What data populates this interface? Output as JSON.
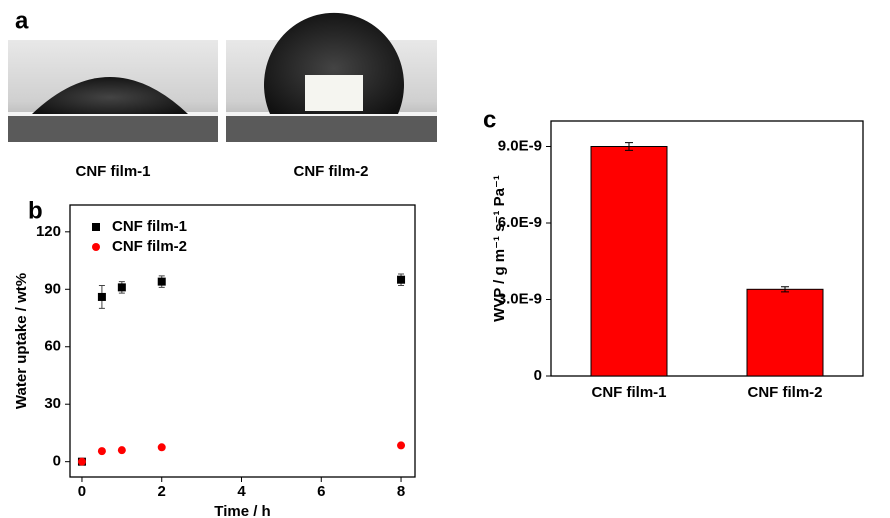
{
  "photos": {
    "label": "a",
    "captions": [
      "CNF film-1",
      "CNF film-2"
    ]
  },
  "chart_data": [
    {
      "type": "scatter",
      "label": "b",
      "xlabel": "Time / h",
      "ylabel": "Water uptake / wt%",
      "xlim": [
        -0.3,
        8.35
      ],
      "xticks": [
        0,
        2,
        4,
        6,
        8
      ],
      "ylim": [
        -8,
        134
      ],
      "yticks": [
        0,
        30,
        60,
        90,
        120
      ],
      "legend": "upper left",
      "series": [
        {
          "name": "CNF film-1",
          "color": "#000000",
          "marker": "square",
          "x": [
            0,
            0.5,
            1,
            2,
            8
          ],
          "values": [
            0,
            86,
            91,
            94,
            95
          ],
          "errors": [
            0,
            6,
            3,
            3,
            3
          ]
        },
        {
          "name": "CNF film-2",
          "color": "#ff0000",
          "marker": "circle",
          "x": [
            0,
            0.5,
            1,
            2,
            8
          ],
          "values": [
            0,
            5.5,
            6,
            7.5,
            8.5
          ]
        }
      ]
    },
    {
      "type": "bar",
      "label": "c",
      "ylabel": "WVP / g m⁻¹ s⁻¹ Pa⁻¹",
      "categories": [
        "CNF film-1",
        "CNF film-2"
      ],
      "values": [
        9e-09,
        3.4e-09
      ],
      "errors": [
        1.5e-10,
        1e-10
      ],
      "color": "#ff0000",
      "ylim": [
        0,
        1e-08
      ],
      "yticks": [
        0,
        {
          "value": 3e-09,
          "label": "3.0E-9"
        },
        {
          "value": 6e-09,
          "label": "6.0E-9"
        },
        {
          "value": 9e-09,
          "label": "9.0E-9"
        }
      ]
    }
  ]
}
